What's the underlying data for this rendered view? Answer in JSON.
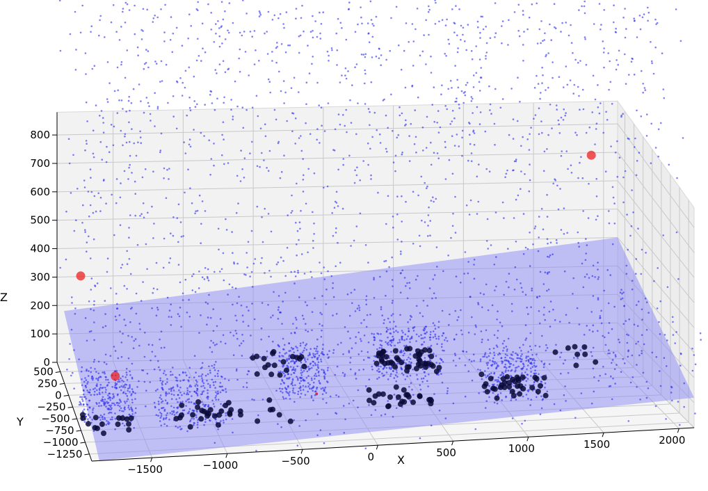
{
  "chart_data": {
    "type": "scatter",
    "projection": "3d",
    "title": "",
    "xlabel": "X",
    "ylabel": "Y",
    "zlabel": "Z",
    "xlim": [
      -1900,
      2100
    ],
    "ylim": [
      -1400,
      700
    ],
    "zlim": [
      0,
      880
    ],
    "x_ticks": [
      -1500,
      -1000,
      -500,
      0,
      500,
      1000,
      1500,
      2000
    ],
    "y_ticks": [
      500,
      250,
      0,
      -250,
      -500,
      -750,
      -1000,
      -1250
    ],
    "z_ticks": [
      0,
      100,
      200,
      300,
      400,
      500,
      600,
      700,
      800
    ],
    "x_tick_labels": [
      "−1500",
      "−1000",
      "−500",
      "0",
      "500",
      "1000",
      "1500",
      "2000"
    ],
    "y_tick_labels": [
      "500",
      "250",
      "0",
      "−250",
      "−500",
      "−750",
      "−1000",
      "−1250"
    ],
    "z_tick_labels": [
      "0",
      "100",
      "200",
      "300",
      "400",
      "500",
      "600",
      "700",
      "800"
    ],
    "grid": true,
    "legend": "none",
    "colors": {
      "points": "#2a2af0",
      "dense_points": "#0a0a3a",
      "outliers": "#ee2020",
      "plane": "#8a8af5",
      "pane": "#f2f2f2"
    },
    "series": [
      {
        "marker": "small-dot",
        "color": "blue",
        "approx_count": 12000,
        "distribution": "scattered throughout the volume; clusters near z=0 at x≈-1200, x≈500, x≈1200"
      },
      {
        "marker": "large-dot",
        "color": "dark-navy",
        "approx_count": 180,
        "distribution": "lying on the fitted plane (ground surface)"
      },
      {
        "marker": "large-dot",
        "color": "red",
        "points": [
          {
            "x": -1750,
            "y": 550,
            "z": 330
          },
          {
            "x": -1550,
            "y": 200,
            "z": 30
          },
          {
            "x": 1900,
            "y": 650,
            "z": 700
          },
          {
            "x": -200,
            "y": -150,
            "z": 0
          }
        ]
      }
    ],
    "plane": {
      "label": "",
      "corners": [
        {
          "x": -1850,
          "y": -1400,
          "z": 0
        },
        {
          "x": 2100,
          "y": -1400,
          "z": 120
        },
        {
          "x": 2100,
          "y": 700,
          "z": 400
        },
        {
          "x": -1850,
          "y": 700,
          "z": 180
        }
      ]
    }
  }
}
